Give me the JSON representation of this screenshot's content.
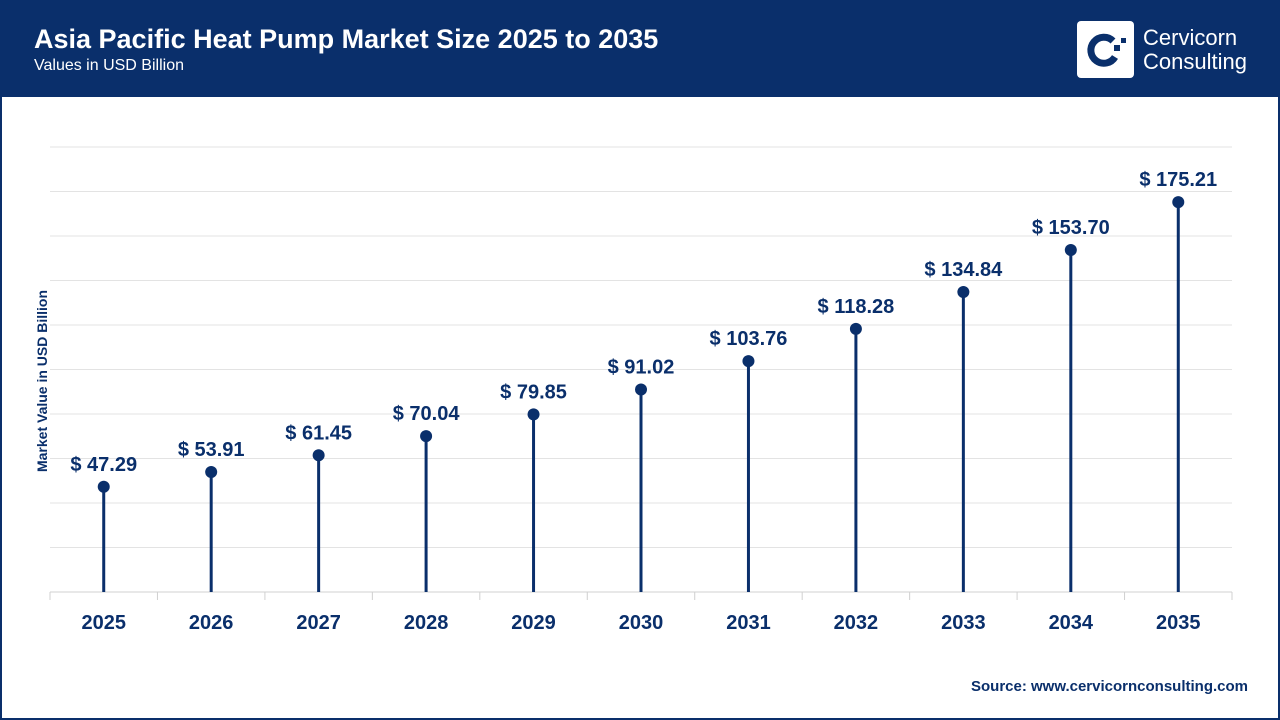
{
  "header": {
    "title": "Asia Pacific Heat Pump Market Size 2025 to 2035",
    "subtitle": "Values in USD Billion"
  },
  "logo": {
    "line1": "Cervicorn",
    "line2": "Consulting"
  },
  "source": "Source: www.cervicornconsulting.com",
  "colors": {
    "primary": "#0a2f6b",
    "grid": "#e3e3e3"
  },
  "chart_data": {
    "type": "lollipop",
    "title": "Asia Pacific Heat Pump Market Size 2025 to 2035",
    "subtitle": "Values in USD Billion",
    "ylabel": "Market Value in USD Billion",
    "xlabel": "",
    "ylim": [
      0,
      200
    ],
    "grid": true,
    "categories": [
      "2025",
      "2026",
      "2027",
      "2028",
      "2029",
      "2030",
      "2031",
      "2032",
      "2033",
      "2034",
      "2035"
    ],
    "values": [
      47.29,
      53.91,
      61.45,
      70.04,
      79.85,
      91.02,
      103.76,
      118.28,
      134.84,
      153.7,
      175.21
    ],
    "labels": [
      "$ 47.29",
      "$ 53.91",
      "$ 61.45",
      "$ 70.04",
      "$ 79.85",
      "$ 91.02",
      "$ 103.76",
      "$ 118.28",
      "$ 134.84",
      "$ 153.70",
      "$ 175.21"
    ]
  }
}
